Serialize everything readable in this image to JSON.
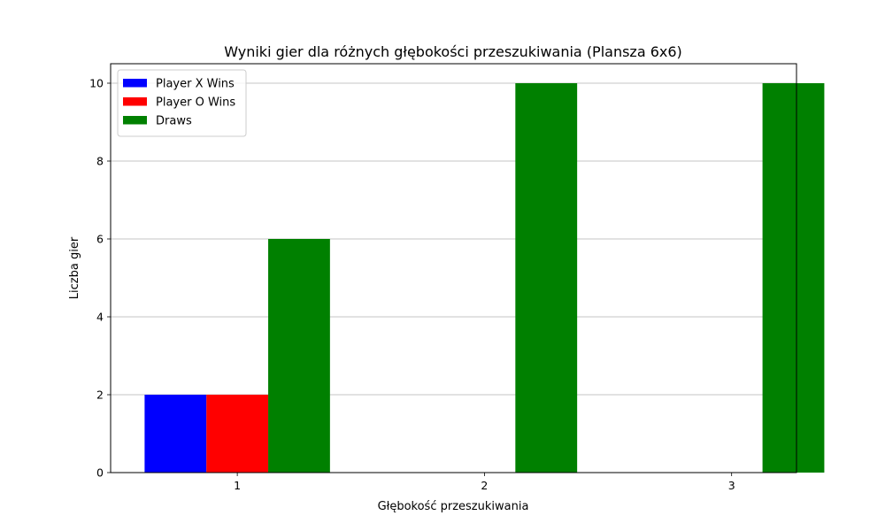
{
  "chart_data": {
    "type": "bar",
    "title": "Wyniki gier dla różnych głębokości przeszukiwania (Plansza 6x6)",
    "xlabel": "Głębokość przeszukiwania",
    "ylabel": "Liczba gier",
    "categories": [
      "1",
      "2",
      "3"
    ],
    "series": [
      {
        "name": "Player X Wins",
        "values": [
          2,
          0,
          0
        ],
        "color": "#0000ff"
      },
      {
        "name": "Player O Wins",
        "values": [
          2,
          0,
          0
        ],
        "color": "#ff0000"
      },
      {
        "name": "Draws",
        "values": [
          6,
          10,
          10
        ],
        "color": "#008000"
      }
    ],
    "ylim": [
      0,
      10.5
    ],
    "yticks": [
      0,
      2,
      4,
      6,
      8,
      10
    ],
    "grid": "y",
    "legend_position": "top-left"
  }
}
